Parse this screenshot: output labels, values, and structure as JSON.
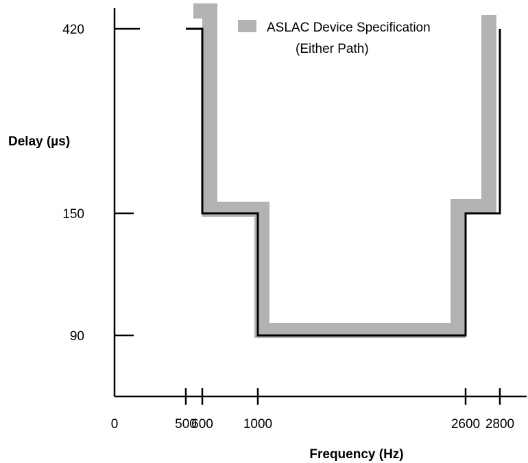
{
  "chart_data": {
    "type": "line",
    "title": "",
    "xlabel": "Frequency (Hz)",
    "ylabel": "Delay (µs)",
    "x_ticks": [
      {
        "value": 0,
        "label": "0"
      },
      {
        "value": 500,
        "label": "500"
      },
      {
        "value": 600,
        "label": "600"
      },
      {
        "value": 1000,
        "label": "1000"
      },
      {
        "value": 2600,
        "label": "2600"
      },
      {
        "value": 2800,
        "label": "2800"
      }
    ],
    "y_ticks": [
      {
        "value": 90,
        "label": "90"
      },
      {
        "value": 150,
        "label": "150"
      },
      {
        "value": 420,
        "label": "420"
      }
    ],
    "legend": {
      "placement": "top-right",
      "entries": [
        {
          "label_line1": "ASLAC Device Specification",
          "label_line2": "(Either Path)",
          "color": "#b3b3b3"
        }
      ]
    },
    "series": [
      {
        "name": "ASLAC Device Specification (Either Path)",
        "kind": "spec-band",
        "color": "#b3b3b3",
        "points": [
          {
            "x": 500,
            "y": 420
          },
          {
            "x": 600,
            "y": 420
          },
          {
            "x": 600,
            "y": 150
          },
          {
            "x": 1000,
            "y": 150
          },
          {
            "x": 1000,
            "y": 90
          },
          {
            "x": 2600,
            "y": 90
          },
          {
            "x": 2600,
            "y": 150
          },
          {
            "x": 2800,
            "y": 150
          },
          {
            "x": 2800,
            "y": 420
          }
        ]
      },
      {
        "name": "",
        "kind": "limit-line",
        "color": "#000000",
        "points": [
          {
            "x": 500,
            "y": 420
          },
          {
            "x": 600,
            "y": 420
          },
          {
            "x": 600,
            "y": 150
          },
          {
            "x": 1000,
            "y": 150
          },
          {
            "x": 1000,
            "y": 90
          },
          {
            "x": 2600,
            "y": 90
          },
          {
            "x": 2600,
            "y": 150
          },
          {
            "x": 2800,
            "y": 150
          },
          {
            "x": 2800,
            "y": 420
          }
        ]
      }
    ],
    "grid": false
  }
}
